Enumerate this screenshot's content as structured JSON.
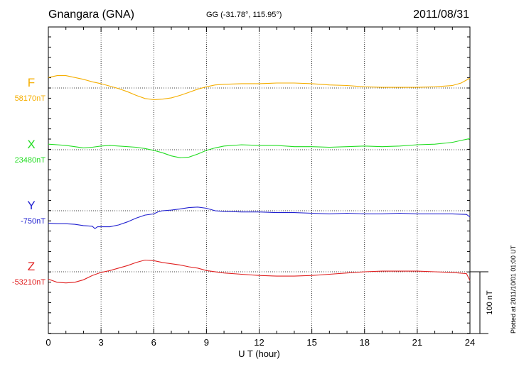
{
  "header": {
    "station": "Gnangara (GNA)",
    "coords": "GG (-31.78°, 115.95°)",
    "date": "2011/08/31"
  },
  "footer": {
    "plotted_note": "Plotted at 2011/10/01 01:00 UT"
  },
  "chart_data": {
    "type": "line",
    "title": "Gnangara (GNA)",
    "xlabel": "U T (hour)",
    "ylabel": "",
    "xlim": [
      0,
      24
    ],
    "xticks": [
      0,
      3,
      6,
      9,
      12,
      15,
      18,
      21,
      24
    ],
    "x_minor_step": 1,
    "grid": true,
    "scale_bar": {
      "label": "100 nT",
      "nT": 100
    },
    "series": [
      {
        "name": "F",
        "baseline_label": "58170nT",
        "baseline_nT": 58170,
        "color": "#f5ae00",
        "points": [
          [
            0,
            17
          ],
          [
            0.5,
            20
          ],
          [
            1,
            20
          ],
          [
            1.5,
            17
          ],
          [
            2,
            14
          ],
          [
            2.5,
            10
          ],
          [
            3,
            7
          ],
          [
            3.5,
            3
          ],
          [
            4,
            -1
          ],
          [
            4.5,
            -6
          ],
          [
            5,
            -12
          ],
          [
            5.5,
            -17
          ],
          [
            6,
            -19
          ],
          [
            6.5,
            -18
          ],
          [
            7,
            -16
          ],
          [
            7.5,
            -12
          ],
          [
            8,
            -7
          ],
          [
            8.5,
            -2
          ],
          [
            9,
            2
          ],
          [
            9.5,
            5
          ],
          [
            10,
            6
          ],
          [
            11,
            7
          ],
          [
            12,
            7
          ],
          [
            13,
            8
          ],
          [
            14,
            8
          ],
          [
            15,
            7
          ],
          [
            16,
            5
          ],
          [
            17,
            4
          ],
          [
            18,
            2
          ],
          [
            19,
            1
          ],
          [
            20,
            1
          ],
          [
            21,
            1
          ],
          [
            22,
            2
          ],
          [
            23,
            4
          ],
          [
            23.5,
            8
          ],
          [
            24,
            16
          ]
        ]
      },
      {
        "name": "X",
        "baseline_label": "23480nT",
        "baseline_nT": 23480,
        "color": "#22dd22",
        "points": [
          [
            0,
            9
          ],
          [
            0.5,
            8
          ],
          [
            1,
            7
          ],
          [
            1.5,
            5
          ],
          [
            2,
            3
          ],
          [
            2.5,
            4
          ],
          [
            3,
            6
          ],
          [
            3.5,
            7
          ],
          [
            4,
            6
          ],
          [
            5,
            4
          ],
          [
            5.5,
            2
          ],
          [
            6,
            -1
          ],
          [
            6.5,
            -5
          ],
          [
            7,
            -10
          ],
          [
            7.5,
            -13
          ],
          [
            8,
            -12
          ],
          [
            8.5,
            -7
          ],
          [
            9,
            -1
          ],
          [
            9.5,
            3
          ],
          [
            10,
            6
          ],
          [
            11,
            8
          ],
          [
            12,
            7
          ],
          [
            13,
            7
          ],
          [
            14,
            5
          ],
          [
            15,
            5
          ],
          [
            16,
            4
          ],
          [
            17,
            5
          ],
          [
            18,
            6
          ],
          [
            19,
            5
          ],
          [
            20,
            6
          ],
          [
            21,
            8
          ],
          [
            22,
            9
          ],
          [
            23,
            12
          ],
          [
            23.5,
            15
          ],
          [
            24,
            18
          ]
        ]
      },
      {
        "name": "Y",
        "baseline_label": "-750nT",
        "baseline_nT": -750,
        "color": "#2020d0",
        "points": [
          [
            0,
            -20
          ],
          [
            0.5,
            -21
          ],
          [
            1,
            -21
          ],
          [
            1.5,
            -22
          ],
          [
            2,
            -24
          ],
          [
            2.5,
            -25
          ],
          [
            2.65,
            -29
          ],
          [
            2.8,
            -26
          ],
          [
            3,
            -26
          ],
          [
            3.5,
            -26
          ],
          [
            4,
            -23
          ],
          [
            4.5,
            -18
          ],
          [
            5,
            -12
          ],
          [
            5.5,
            -7
          ],
          [
            6,
            -5
          ],
          [
            6.3,
            -1
          ],
          [
            6.5,
            0
          ],
          [
            7,
            1
          ],
          [
            7.5,
            3
          ],
          [
            8,
            5
          ],
          [
            8.5,
            6
          ],
          [
            9,
            4
          ],
          [
            9.5,
            0
          ],
          [
            10,
            -1
          ],
          [
            11,
            -2
          ],
          [
            12,
            -2
          ],
          [
            13,
            -3
          ],
          [
            14,
            -3
          ],
          [
            15,
            -4
          ],
          [
            16,
            -5
          ],
          [
            17,
            -4
          ],
          [
            18,
            -5
          ],
          [
            19,
            -5
          ],
          [
            20,
            -4
          ],
          [
            21,
            -5
          ],
          [
            22,
            -5
          ],
          [
            23,
            -5
          ],
          [
            23.8,
            -6
          ],
          [
            24,
            -10
          ]
        ]
      },
      {
        "name": "Z",
        "baseline_label": "-53210nT",
        "baseline_nT": -53210,
        "color": "#e02020",
        "points": [
          [
            0,
            -12
          ],
          [
            0.5,
            -17
          ],
          [
            1,
            -18
          ],
          [
            1.5,
            -17
          ],
          [
            2,
            -13
          ],
          [
            2.5,
            -6
          ],
          [
            3,
            -1
          ],
          [
            3.5,
            2
          ],
          [
            4,
            6
          ],
          [
            4.5,
            10
          ],
          [
            5,
            15
          ],
          [
            5.5,
            19
          ],
          [
            6,
            18
          ],
          [
            6.5,
            15
          ],
          [
            7,
            13
          ],
          [
            7.5,
            11
          ],
          [
            8,
            8
          ],
          [
            8.5,
            6
          ],
          [
            9,
            2
          ],
          [
            10,
            -2
          ],
          [
            11,
            -4
          ],
          [
            12,
            -6
          ],
          [
            13,
            -7
          ],
          [
            14,
            -7
          ],
          [
            15,
            -6
          ],
          [
            16,
            -4
          ],
          [
            17,
            -2
          ],
          [
            18,
            0
          ],
          [
            19,
            1
          ],
          [
            20,
            1
          ],
          [
            21,
            1
          ],
          [
            22,
            0
          ],
          [
            23,
            -1
          ],
          [
            23.8,
            -3
          ],
          [
            24,
            -14
          ]
        ]
      }
    ]
  }
}
